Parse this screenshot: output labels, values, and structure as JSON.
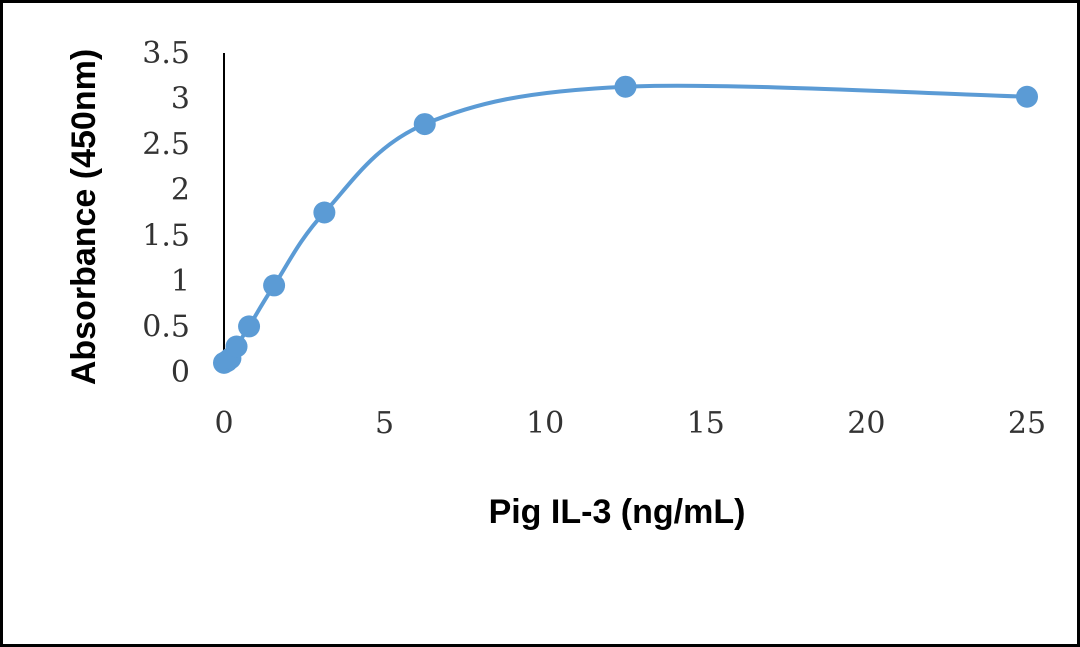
{
  "chart_data": {
    "type": "line",
    "xlabel": "Pig IL-3 (ng/mL)",
    "ylabel": "Absorbance (450nm)",
    "xlim": [
      0,
      25
    ],
    "ylim": [
      0,
      3.5
    ],
    "x_ticks": [
      "0",
      "5",
      "10",
      "15",
      "20",
      "25"
    ],
    "y_ticks": [
      "0",
      "0.5",
      "1",
      "1.5",
      "2",
      "2.5",
      "3",
      "3.5"
    ],
    "grid": false,
    "smooth": true,
    "series": [
      {
        "x": [
          0,
          0.1,
          0.2,
          0.39,
          0.78,
          1.56,
          3.125,
          6.25,
          12.5,
          25
        ],
        "y": [
          0.1,
          0.12,
          0.15,
          0.28,
          0.5,
          0.95,
          1.75,
          2.72,
          3.13,
          3.02
        ],
        "color": "#5b9bd5"
      }
    ]
  }
}
